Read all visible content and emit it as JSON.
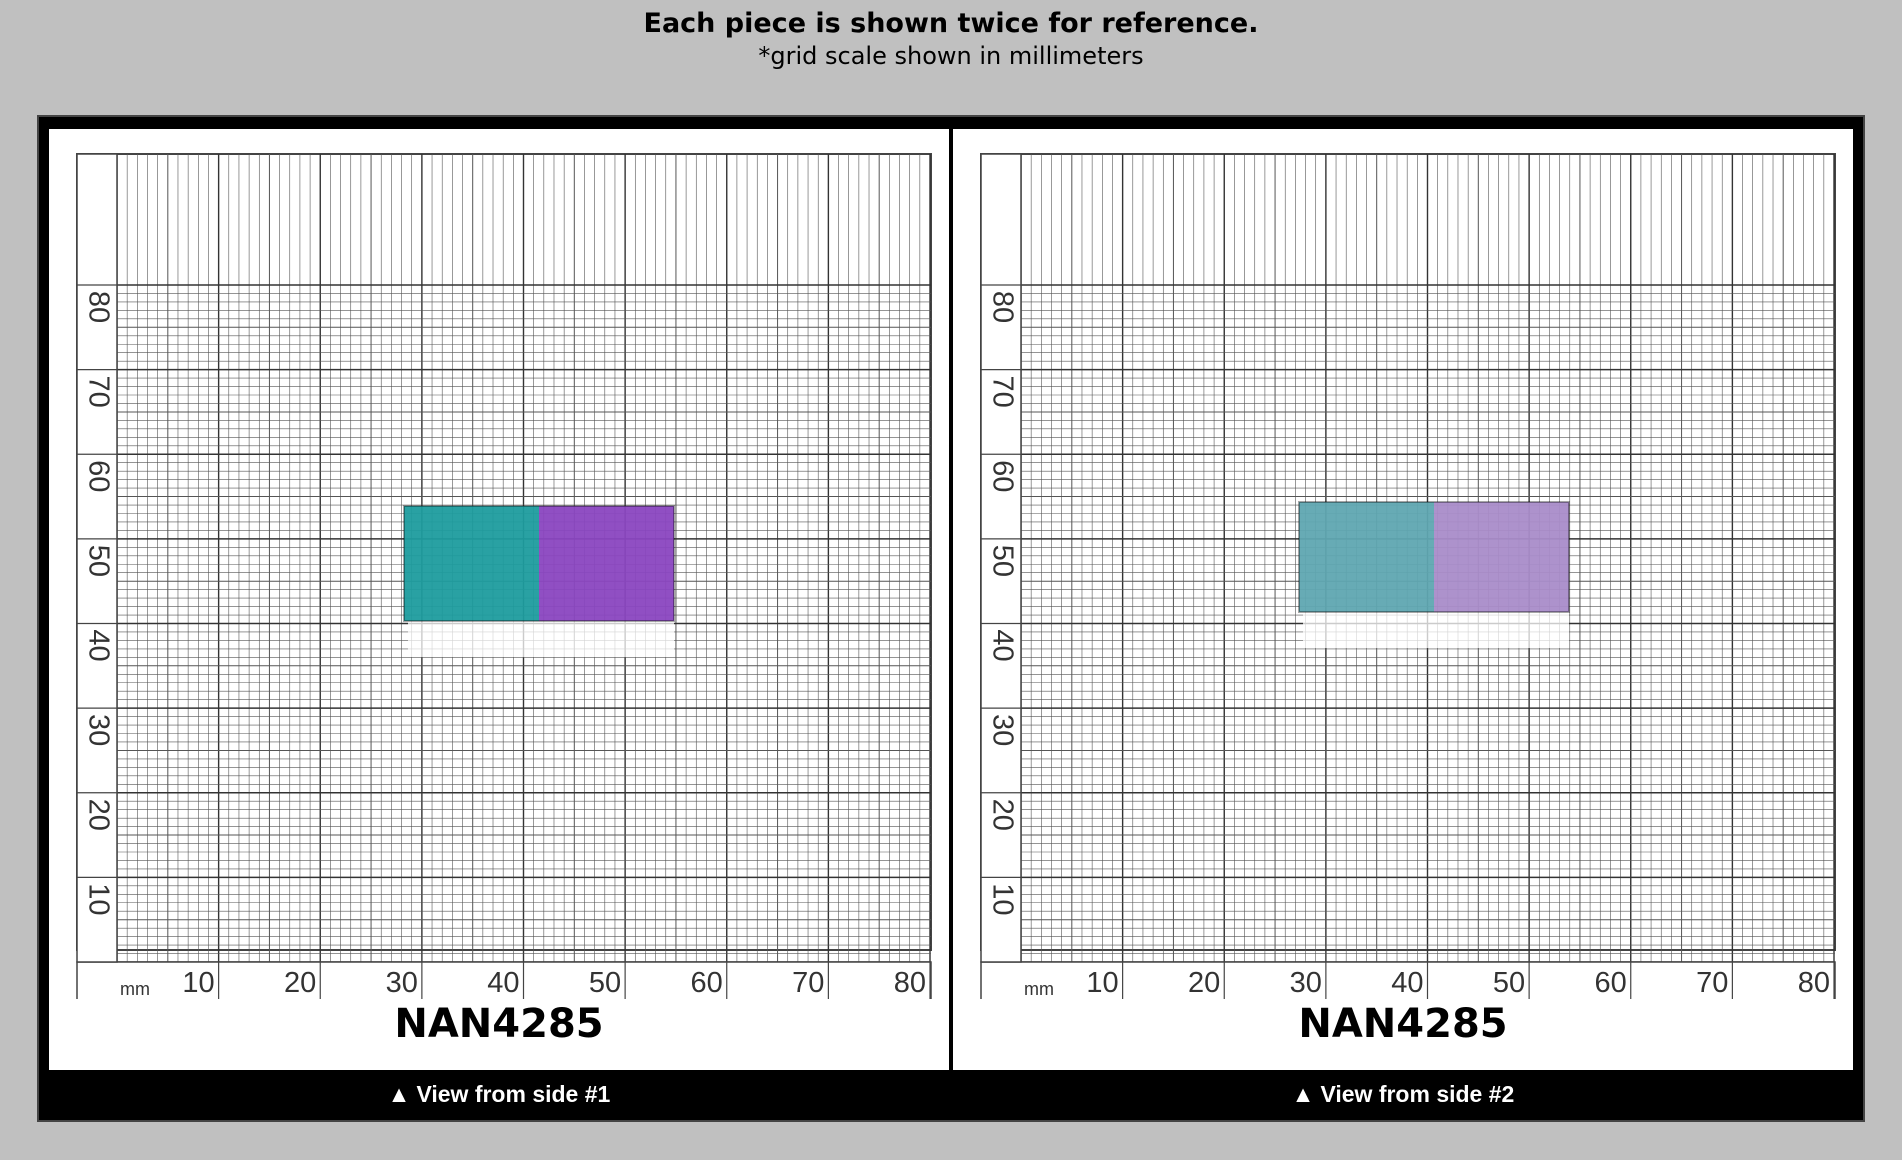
{
  "header": {
    "title": "Each piece is shown twice for reference.",
    "subtitle": "*grid scale shown in millimeters"
  },
  "grid": {
    "unit_label": "mm",
    "x_ticks": [
      "10",
      "20",
      "30",
      "40",
      "50",
      "60",
      "70",
      "80"
    ],
    "y_ticks": [
      "10",
      "20",
      "30",
      "40",
      "50",
      "60",
      "70",
      "80"
    ]
  },
  "panels": [
    {
      "code": "NAN4285",
      "caption_arrow": "▲",
      "caption": "View from side #1",
      "colors": {
        "left": "#1e9c9e",
        "right": "#8a46c0"
      }
    },
    {
      "code": "NAN4285",
      "caption_arrow": "▲",
      "caption": "View from side #2",
      "colors": {
        "left": "#5fa7b1",
        "right": "#a98cc9"
      }
    }
  ]
}
